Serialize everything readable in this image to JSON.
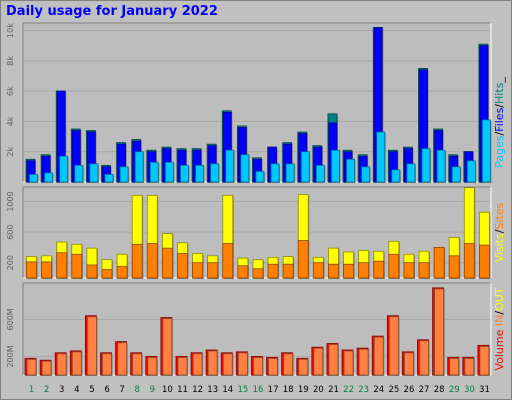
{
  "title": "Daily usage for January 2022",
  "colors": {
    "pages": "#00c8ff",
    "files": "#0000ff",
    "hits": "#008080",
    "visits": "#ffff00",
    "sites": "#ff8000",
    "kb_in": "#ff8040",
    "kb_out": "#ff0000",
    "background": "#c0c0c0",
    "weekday": "#000000",
    "weekend": "#008040"
  },
  "legend_right": {
    "panel1": [
      "Pages",
      "/",
      "Files",
      "/",
      "Hits",
      "_"
    ],
    "panel1_colors": [
      "#00c8ff",
      "#000000",
      "#0000ff",
      "#000000",
      "#008080",
      "#000000"
    ],
    "panel2": [
      "Visits",
      "/",
      "Sites"
    ],
    "panel2_colors": [
      "#ffff00",
      "#000000",
      "#ff8000"
    ],
    "panel3": [
      "Volume",
      " ",
      "IN",
      "/",
      "OUT"
    ],
    "panel3_colors": [
      "#ff0000",
      "#000000",
      "#ff8040",
      "#000000",
      "#ffff00"
    ]
  },
  "chart_data": [
    {
      "type": "bar",
      "title": "Daily usage for January 2022",
      "categories": [
        "1",
        "2",
        "3",
        "4",
        "5",
        "6",
        "7",
        "8",
        "9",
        "10",
        "11",
        "12",
        "13",
        "14",
        "15",
        "16",
        "17",
        "18",
        "19",
        "20",
        "21",
        "22",
        "23",
        "24",
        "25",
        "26",
        "27",
        "28",
        "29",
        "30",
        "31"
      ],
      "weekend_days": [
        "1",
        "2",
        "8",
        "9",
        "15",
        "16",
        "22",
        "23",
        "29",
        "30"
      ],
      "ylabel": "Pages / Files / Hits",
      "yticks": [
        "2k",
        "4k",
        "6k",
        "8k",
        "10k"
      ],
      "ylim": [
        0,
        10300
      ],
      "series": [
        {
          "name": "Hits",
          "values": [
            1500,
            1800,
            6000,
            3500,
            3400,
            1100,
            2600,
            2800,
            2100,
            2300,
            2200,
            2200,
            2500,
            4700,
            3700,
            1600,
            2300,
            2600,
            3300,
            2400,
            4500,
            2100,
            1800,
            10200,
            2100,
            2300,
            7500,
            3500,
            1800,
            2000,
            9100
          ]
        },
        {
          "name": "Files",
          "values": [
            1400,
            1700,
            6000,
            3400,
            3300,
            1000,
            2500,
            2700,
            2000,
            2200,
            2100,
            2100,
            2400,
            4600,
            3600,
            1500,
            2300,
            2500,
            3200,
            2300,
            3900,
            2000,
            1700,
            10200,
            2000,
            2200,
            7400,
            3400,
            1700,
            2000,
            9000
          ]
        },
        {
          "name": "Pages",
          "values": [
            500,
            600,
            1700,
            1100,
            1200,
            500,
            1000,
            2000,
            1300,
            1300,
            1100,
            1100,
            1200,
            2100,
            1800,
            700,
            1200,
            1200,
            2000,
            1100,
            2100,
            1500,
            1000,
            3300,
            800,
            1200,
            2200,
            2100,
            1000,
            1400,
            4100
          ]
        }
      ]
    },
    {
      "type": "bar",
      "categories": [
        "1",
        "2",
        "3",
        "4",
        "5",
        "6",
        "7",
        "8",
        "9",
        "10",
        "11",
        "12",
        "13",
        "14",
        "15",
        "16",
        "17",
        "18",
        "19",
        "20",
        "21",
        "22",
        "23",
        "24",
        "25",
        "26",
        "27",
        "28",
        "29",
        "30",
        "31"
      ],
      "ylabel": "Visits / Sites",
      "yticks": [
        "200",
        "600",
        "1000"
      ],
      "ylim": [
        0,
        1150
      ],
      "series": [
        {
          "name": "Visits",
          "values": [
            280,
            290,
            470,
            440,
            390,
            240,
            310,
            1080,
            1080,
            580,
            460,
            320,
            290,
            1080,
            260,
            240,
            270,
            280,
            1090,
            270,
            390,
            340,
            360,
            350,
            480,
            310,
            350,
            370,
            530,
            1180,
            860
          ]
        },
        {
          "name": "Sites",
          "values": [
            210,
            210,
            330,
            310,
            170,
            110,
            150,
            440,
            450,
            390,
            320,
            200,
            200,
            450,
            160,
            120,
            180,
            180,
            490,
            200,
            180,
            180,
            200,
            220,
            310,
            200,
            200,
            400,
            290,
            450,
            430
          ]
        }
      ]
    },
    {
      "type": "bar",
      "categories": [
        "1",
        "2",
        "3",
        "4",
        "5",
        "6",
        "7",
        "8",
        "9",
        "10",
        "11",
        "12",
        "13",
        "14",
        "15",
        "16",
        "17",
        "18",
        "19",
        "20",
        "21",
        "22",
        "23",
        "24",
        "25",
        "26",
        "27",
        "28",
        "29",
        "30",
        "31"
      ],
      "ylabel": "Volume IN / OUT",
      "yticks": [
        "200M",
        "600M"
      ],
      "ylim": [
        0,
        960
      ],
      "series": [
        {
          "name": "Volume",
          "values": [
            180,
            160,
            240,
            260,
            640,
            240,
            360,
            240,
            200,
            620,
            200,
            240,
            270,
            240,
            250,
            200,
            190,
            240,
            180,
            300,
            340,
            270,
            290,
            420,
            640,
            250,
            380,
            940,
            190,
            190,
            320
          ]
        }
      ]
    }
  ]
}
